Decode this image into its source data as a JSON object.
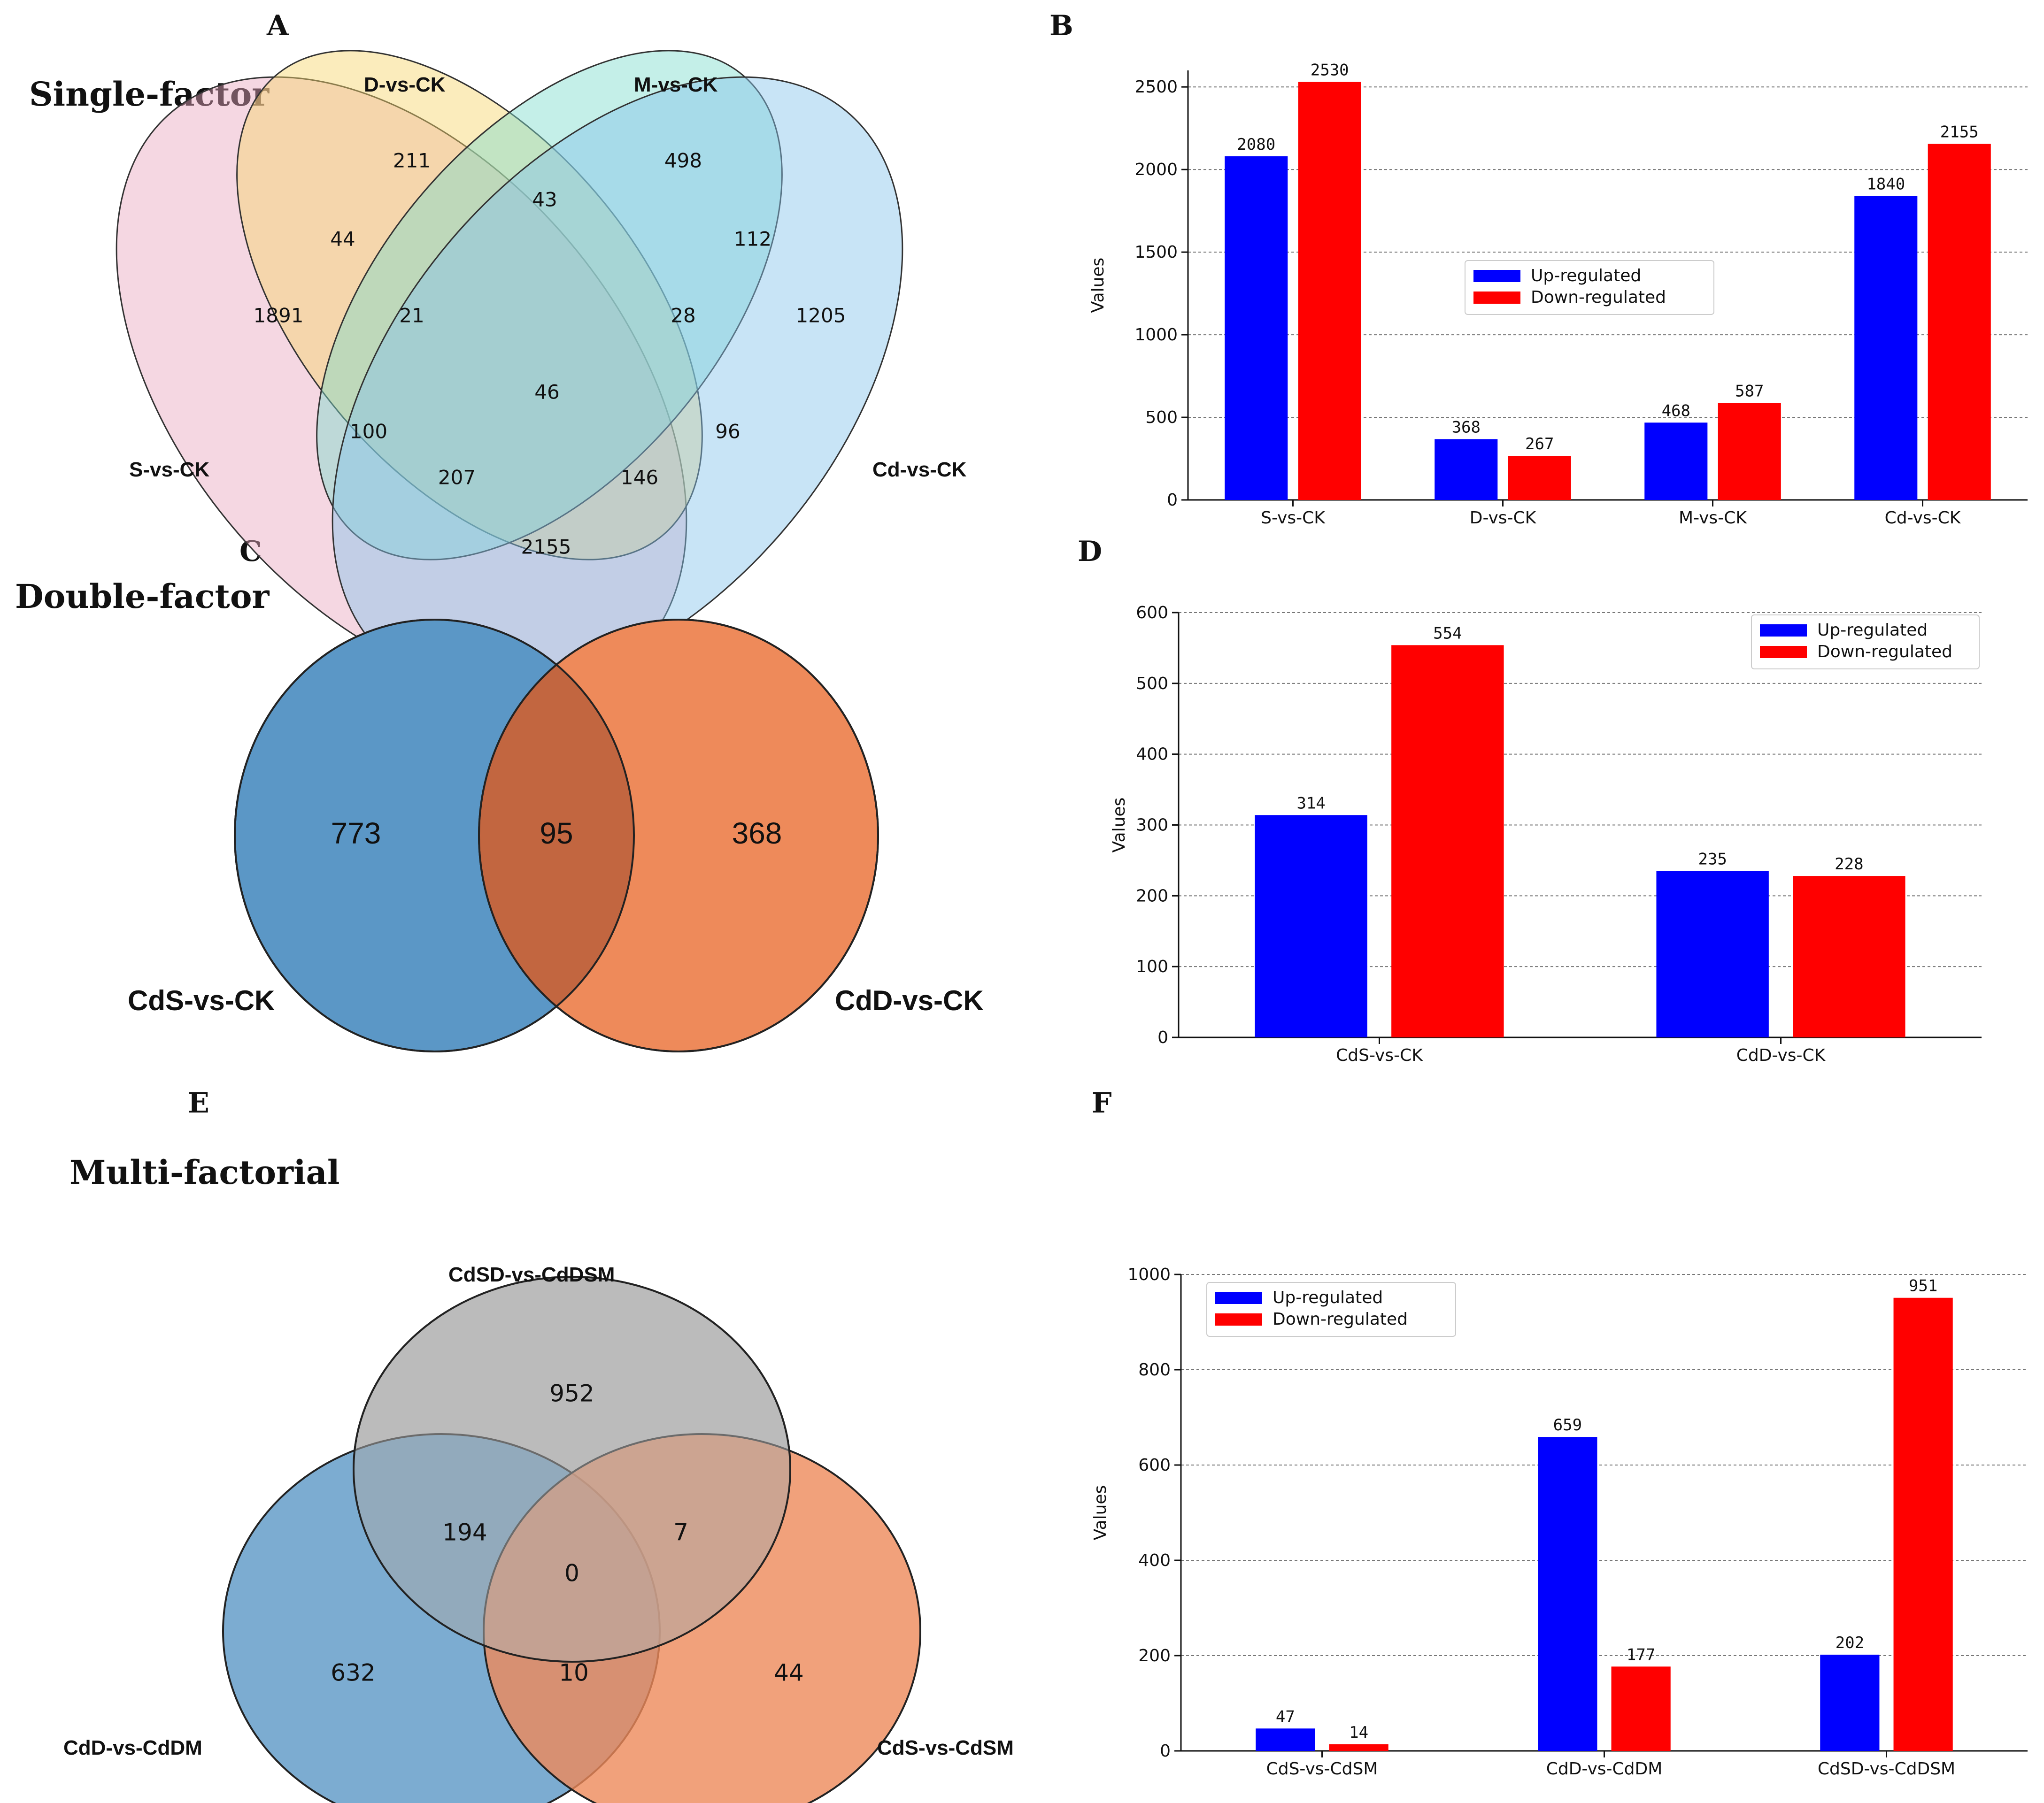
{
  "panel_letters": {
    "a": "A",
    "b": "B",
    "c": "C",
    "d": "D",
    "e": "E",
    "f": "F"
  },
  "sections": {
    "single": "Single-factor",
    "double": "Double-factor",
    "multi": "Multi-factorial"
  },
  "venn_a": {
    "sets": [
      "S-vs-CK",
      "D-vs-CK",
      "M-vs-CK",
      "Cd-vs-CK"
    ],
    "colors": [
      "#e8a7bf",
      "#f7d46a",
      "#7ddccc",
      "#85c4ec"
    ],
    "regions": {
      "d_only": "211",
      "m_only": "498",
      "s_d": "44",
      "d_m": "43",
      "m_cd": "112",
      "s_only": "1891",
      "s_d_m": "21",
      "d_m_cd": "28",
      "cd_only": "1205",
      "all": "46",
      "s_m": "100",
      "d_cd": "96",
      "s_m_cd": "207",
      "s_d_cd": "146",
      "s_cd": "2155"
    }
  },
  "venn_c": {
    "sets": [
      "CdS-vs-CK",
      "CdD-vs-CK"
    ],
    "colors": [
      "#5b97c6",
      "#ee8a5a"
    ],
    "regions": {
      "left": "773",
      "overlap": "95",
      "right": "368"
    }
  },
  "venn_e": {
    "sets": [
      "CdSD-vs-CdDSM",
      "CdD-vs-CdDM",
      "CdS-vs-CdSM"
    ],
    "colors": [
      "#b3b3b3",
      "#5b97c6",
      "#ee8a5a"
    ],
    "regions": {
      "top": "952",
      "top_left": "194",
      "top_right": "7",
      "center": "0",
      "left": "632",
      "left_right": "10",
      "right": "44"
    }
  },
  "chart_data": [
    {
      "id": "B",
      "type": "bar",
      "categories": [
        "S-vs-CK",
        "D-vs-CK",
        "M-vs-CK",
        "Cd-vs-CK"
      ],
      "series": [
        {
          "name": "Up-regulated",
          "color": "#0000ff",
          "values": [
            2080,
            368,
            468,
            1840
          ]
        },
        {
          "name": "Down-regulated",
          "color": "#ff0000",
          "values": [
            2530,
            267,
            587,
            2155
          ]
        }
      ],
      "ylabel": "Values",
      "ylim": [
        0,
        2600
      ],
      "yticks": [
        0,
        500,
        1000,
        1500,
        2000,
        2500
      ],
      "grid": true,
      "legend_position": "center"
    },
    {
      "id": "D",
      "type": "bar",
      "categories": [
        "CdS-vs-CK",
        "CdD-vs-CK"
      ],
      "series": [
        {
          "name": "Up-regulated",
          "color": "#0000ff",
          "values": [
            314,
            235
          ]
        },
        {
          "name": "Down-regulated",
          "color": "#ff0000",
          "values": [
            554,
            228
          ]
        }
      ],
      "ylabel": "Values",
      "ylim": [
        0,
        600
      ],
      "yticks": [
        0,
        100,
        200,
        300,
        400,
        500,
        600
      ],
      "grid": true,
      "legend_position": "top-right"
    },
    {
      "id": "F",
      "type": "bar",
      "categories": [
        "CdS-vs-CdSM",
        "CdD-vs-CdDM",
        "CdSD-vs-CdDSM"
      ],
      "series": [
        {
          "name": "Up-regulated",
          "color": "#0000ff",
          "values": [
            47,
            659,
            202
          ]
        },
        {
          "name": "Down-regulated",
          "color": "#ff0000",
          "values": [
            14,
            177,
            951
          ]
        }
      ],
      "ylabel": "Values",
      "ylim": [
        0,
        1000
      ],
      "yticks": [
        0,
        200,
        400,
        600,
        800,
        1000
      ],
      "grid": true,
      "legend_position": "top-left"
    }
  ]
}
